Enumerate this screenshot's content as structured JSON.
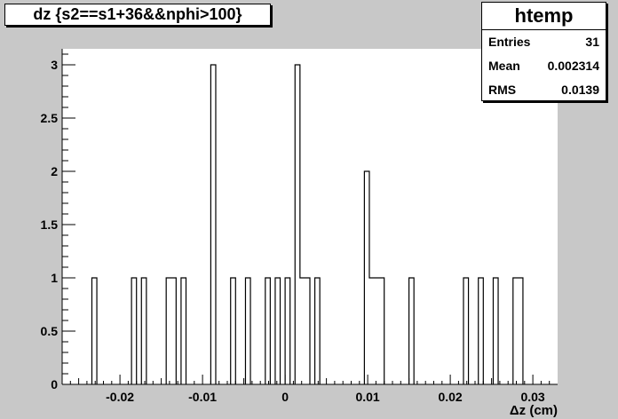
{
  "header": {
    "title": "dz {s2==s1+36&&nphi>100}"
  },
  "stats": {
    "name": "htemp",
    "entries_label": "Entries",
    "entries_value": "31",
    "mean_label": "Mean",
    "mean_value": "0.002314",
    "rms_label": "RMS",
    "rms_value": "0.0139"
  },
  "colors": {
    "background": "#c8c8c8",
    "frame_fill": "#ffffff",
    "line": "#000000"
  },
  "chart_data": {
    "type": "bar",
    "title": "dz {s2==s1+36&&nphi>100}",
    "xlabel": "Δz (cm)",
    "ylabel": "",
    "xlim": [
      -0.027,
      0.033
    ],
    "ylim": [
      0,
      3.15
    ],
    "bin_width": 0.0006,
    "xticks": [
      -0.02,
      -0.01,
      0,
      0.01,
      0.02,
      0.03
    ],
    "xtick_labels": [
      "-0.02",
      "-0.01",
      "0",
      "0.01",
      "0.02",
      "0.03"
    ],
    "yticks": [
      0,
      0.5,
      1,
      1.5,
      2,
      2.5,
      3
    ],
    "ytick_labels": [
      "0",
      "0.5",
      "1",
      "1.5",
      "2",
      "2.5",
      "3"
    ],
    "grid": false,
    "legend": "top-right stats box",
    "bins": [
      {
        "x": -0.0234,
        "count": 1
      },
      {
        "x": -0.0186,
        "count": 1
      },
      {
        "x": -0.0174,
        "count": 1
      },
      {
        "x": -0.0144,
        "count": 1
      },
      {
        "x": -0.0138,
        "count": 1
      },
      {
        "x": -0.0126,
        "count": 1
      },
      {
        "x": -0.009,
        "count": 3
      },
      {
        "x": -0.0066,
        "count": 1
      },
      {
        "x": -0.0048,
        "count": 1
      },
      {
        "x": -0.0024,
        "count": 1
      },
      {
        "x": -0.0012,
        "count": 1
      },
      {
        "x": 0.0,
        "count": 1
      },
      {
        "x": 0.0012,
        "count": 3
      },
      {
        "x": 0.0018,
        "count": 1
      },
      {
        "x": 0.0024,
        "count": 1
      },
      {
        "x": 0.0036,
        "count": 1
      },
      {
        "x": 0.0096,
        "count": 2
      },
      {
        "x": 0.0102,
        "count": 1
      },
      {
        "x": 0.0108,
        "count": 1
      },
      {
        "x": 0.0114,
        "count": 1
      },
      {
        "x": 0.015,
        "count": 1
      },
      {
        "x": 0.0216,
        "count": 1
      },
      {
        "x": 0.0234,
        "count": 1
      },
      {
        "x": 0.0252,
        "count": 1
      },
      {
        "x": 0.0276,
        "count": 1
      },
      {
        "x": 0.0282,
        "count": 1
      }
    ]
  }
}
